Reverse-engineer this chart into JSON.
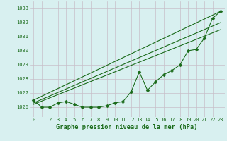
{
  "xlabel": "Graphe pression niveau de la mer (hPa)",
  "x": [
    0,
    1,
    2,
    3,
    4,
    5,
    6,
    7,
    8,
    9,
    10,
    11,
    12,
    13,
    14,
    15,
    16,
    17,
    18,
    19,
    20,
    21,
    22,
    23
  ],
  "line_data": [
    1026.5,
    1026.0,
    1026.0,
    1026.3,
    1026.4,
    1026.2,
    1026.0,
    1026.0,
    1026.0,
    1026.1,
    1026.3,
    1026.4,
    1027.1,
    1028.5,
    1027.2,
    1027.8,
    1028.3,
    1028.6,
    1029.0,
    1030.0,
    1030.1,
    1030.9,
    1032.3,
    1032.8
  ],
  "trend1_x": [
    0,
    23
  ],
  "trend1_y": [
    1026.5,
    1032.8
  ],
  "trend2_x": [
    0,
    23
  ],
  "trend2_y": [
    1026.2,
    1031.5
  ],
  "trend3_x": [
    0,
    23
  ],
  "trend3_y": [
    1026.3,
    1032.0
  ],
  "line_color": "#1a6b1a",
  "bg_color": "#d8f0f0",
  "grid_color": "#c8bec8",
  "ylim_min": 1025.3,
  "ylim_max": 1033.5,
  "xlim_min": -0.5,
  "xlim_max": 23.5,
  "yticks": [
    1026,
    1027,
    1028,
    1029,
    1030,
    1031,
    1032,
    1033
  ],
  "xticks": [
    0,
    1,
    2,
    3,
    4,
    5,
    6,
    7,
    8,
    9,
    10,
    11,
    12,
    13,
    14,
    15,
    16,
    17,
    18,
    19,
    20,
    21,
    22,
    23
  ],
  "marker_size": 2.5,
  "linewidth": 0.8,
  "tick_fontsize": 5.0,
  "xlabel_fontsize": 6.2
}
